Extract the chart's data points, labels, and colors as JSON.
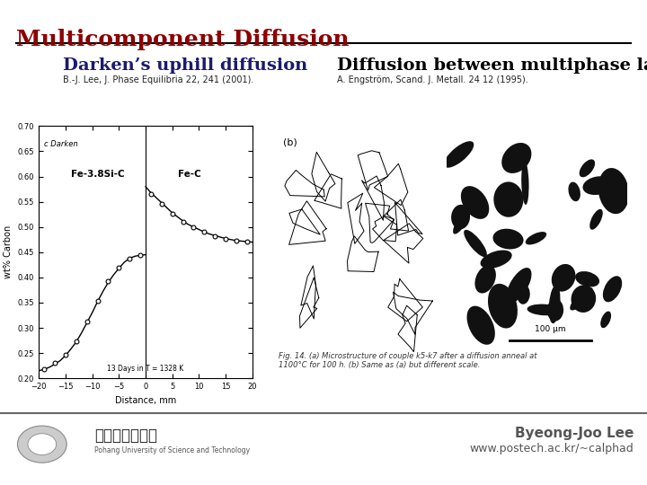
{
  "title": "Multicomponent Diffusion",
  "title_color": "#8B0000",
  "background_color": "#FFFFFF",
  "left_heading": "Darken’s uphill diffusion",
  "left_heading_color": "#1a1a6e",
  "left_ref": "B.-J. Lee, J. Phase Equilibria 22, 241 (2001).",
  "right_heading": "Diffusion between multiphase layers",
  "right_heading_color": "#000000",
  "right_ref": "A. Engström, Scand. J. Metall. 24 12 (1995).",
  "footer_name": "Byeong-Joo Lee",
  "footer_url": "www.postech.ac.kr/~calphad",
  "footer_color": "#555555",
  "separator_color": "#000000",
  "bottom_separator_color": "#666666",
  "fig_caption": "Fig. 14. (a) Microstructure of couple k5-k7 after a diffusion anneal at\n1100°C for 100 h. (b) Same as (a) but different scale."
}
